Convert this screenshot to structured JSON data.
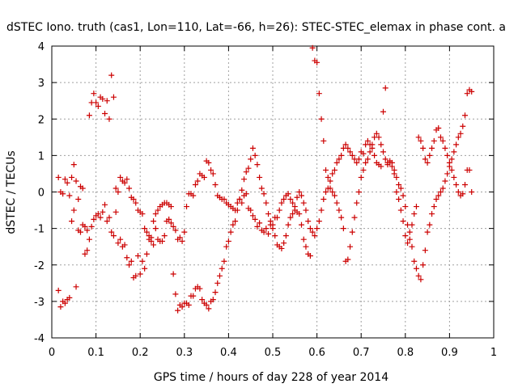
{
  "chart_data": {
    "type": "scatter",
    "title": "dSTEC Iono. truth (cas1, Lon=110, Lat=-66, h=26): STEC-STEC_elemax in phase cont. a",
    "xlabel": "GPS time / hours of day 228 of year 2014",
    "ylabel": "dSTEC  / TECUs",
    "xlim": [
      0,
      1
    ],
    "ylim": [
      -4,
      4
    ],
    "x_ticks": [
      "0",
      "0.1",
      "0.2",
      "0.3",
      "0.4",
      "0.5",
      "0.6",
      "0.7",
      "0.8",
      "0.9",
      "1"
    ],
    "y_ticks": [
      "-4",
      "-3",
      "-2",
      "-1",
      "0",
      "1",
      "2",
      "3",
      "4"
    ],
    "grid": true,
    "marker": "+",
    "color": "#cc0000",
    "series": [
      {
        "x": [
          0.015,
          0.02,
          0.025,
          0.03,
          0.035,
          0.04,
          0.045,
          0.05,
          0.055,
          0.06,
          0.065,
          0.07,
          0.075,
          0.08,
          0.085,
          0.09,
          0.095,
          0.1,
          0.105,
          0.11,
          0.115,
          0.12,
          0.125,
          0.13,
          0.135,
          0.14,
          0.145,
          0.15,
          0.155,
          0.16,
          0.165,
          0.17,
          0.175,
          0.18,
          0.185,
          0.19,
          0.195,
          0.2,
          0.205,
          0.21,
          0.215,
          0.22,
          0.225,
          0.23,
          0.235,
          0.24,
          0.245,
          0.25,
          0.255,
          0.26,
          0.265,
          0.27,
          0.275,
          0.28,
          0.285,
          0.29,
          0.295,
          0.3,
          0.305,
          0.31,
          0.315,
          0.32,
          0.325,
          0.33,
          0.335,
          0.34,
          0.345,
          0.35,
          0.355,
          0.36,
          0.365,
          0.37,
          0.375,
          0.38,
          0.385,
          0.39,
          0.395,
          0.4,
          0.405,
          0.41,
          0.415,
          0.42,
          0.425,
          0.43,
          0.435,
          0.44,
          0.445,
          0.45,
          0.455,
          0.46,
          0.465,
          0.47,
          0.475,
          0.48,
          0.485,
          0.49,
          0.495,
          0.5,
          0.505,
          0.51,
          0.515,
          0.52,
          0.525,
          0.53,
          0.535,
          0.54,
          0.545,
          0.55,
          0.555,
          0.56
        ],
        "y": [
          0.4,
          0.0,
          -0.05,
          0.35,
          0.25,
          -0.1,
          0.4,
          0.75,
          0.3,
          -0.2,
          -1.1,
          -0.9,
          -1.7,
          -1.6,
          -1.3,
          -0.95,
          -0.75,
          -0.65,
          -0.6,
          -0.7,
          -0.55,
          -0.35,
          -0.8,
          -0.7,
          -1.1,
          -1.2,
          -0.55,
          -1.4,
          -1.3,
          -1.5,
          -1.45,
          -1.8,
          -2.0,
          -1.9,
          -2.35,
          -2.3,
          -1.75,
          -2.25,
          -1.9,
          -2.1,
          -1.7,
          -1.3,
          -1.35,
          -1.45,
          -1.0,
          -1.3,
          -1.35,
          -1.35,
          -1.2,
          -0.8,
          -0.75,
          -0.85,
          -0.95,
          -1.05,
          -1.3,
          -1.25,
          -1.35,
          -1.1,
          -0.4,
          -0.05,
          -0.05,
          -0.1,
          0.2,
          0.3,
          0.5,
          0.45,
          0.4,
          0.85,
          0.8,
          0.6,
          0.5,
          0.2,
          -0.1,
          -0.15,
          -0.2,
          -0.2,
          -0.3,
          -0.35,
          -0.4,
          -0.45,
          -0.5,
          -0.3,
          -0.2,
          -0.3,
          -0.1,
          -0.05,
          -0.45,
          -0.5,
          -0.65,
          -0.75,
          -0.95,
          -0.85,
          -1.05,
          -1.1,
          -1.0,
          -1.15,
          -0.8,
          -0.9,
          -0.7,
          -0.7,
          -0.5,
          -0.3,
          -0.2,
          -0.1,
          -0.05,
          -0.2,
          -0.3,
          -0.5,
          -0.55,
          -0.6
        ]
      },
      {
        "x": [
          0.015,
          0.02,
          0.025,
          0.03,
          0.035,
          0.04,
          0.045,
          0.05,
          0.055,
          0.06,
          0.065,
          0.07,
          0.075,
          0.08,
          0.085,
          0.09,
          0.095,
          0.1,
          0.105,
          0.11,
          0.115,
          0.12,
          0.125,
          0.13,
          0.135,
          0.14,
          0.145,
          0.15,
          0.155,
          0.16,
          0.165,
          0.17,
          0.175,
          0.18,
          0.185,
          0.19,
          0.195,
          0.2,
          0.205,
          0.21,
          0.215,
          0.22,
          0.225,
          0.23,
          0.235,
          0.24,
          0.245,
          0.25,
          0.255,
          0.26,
          0.265,
          0.27,
          0.275,
          0.28,
          0.285,
          0.29,
          0.295,
          0.3,
          0.305,
          0.31,
          0.315,
          0.32,
          0.325,
          0.33,
          0.335,
          0.34,
          0.345,
          0.35,
          0.355,
          0.36,
          0.365,
          0.37,
          0.375,
          0.38,
          0.385,
          0.39,
          0.395,
          0.4,
          0.405,
          0.41,
          0.415,
          0.42,
          0.425,
          0.43,
          0.435,
          0.44,
          0.445,
          0.45,
          0.455,
          0.46,
          0.465,
          0.47,
          0.475,
          0.48,
          0.485,
          0.49,
          0.495,
          0.5,
          0.505,
          0.51,
          0.515,
          0.52,
          0.525,
          0.53,
          0.535,
          0.54,
          0.545,
          0.55,
          0.555,
          0.56
        ],
        "y": [
          -2.7,
          -3.15,
          -3.0,
          -3.05,
          -2.95,
          -2.9,
          -0.8,
          -0.5,
          -2.6,
          -1.05,
          0.15,
          0.1,
          -0.95,
          -1.05,
          2.1,
          2.45,
          2.7,
          2.45,
          2.35,
          2.6,
          2.55,
          2.15,
          2.5,
          2.0,
          3.2,
          2.6,
          0.1,
          0.0,
          0.4,
          0.3,
          0.25,
          0.35,
          0.1,
          -0.15,
          -0.2,
          -0.3,
          -0.5,
          -0.55,
          -0.6,
          -1.0,
          -1.1,
          -1.2,
          -1.25,
          -0.8,
          -0.6,
          -0.5,
          -0.4,
          -0.35,
          -0.3,
          -0.3,
          -0.35,
          -0.4,
          -2.25,
          -2.8,
          -3.25,
          -3.1,
          -3.15,
          -3.05,
          -3.05,
          -3.1,
          -2.85,
          -2.85,
          -2.65,
          -2.6,
          -2.65,
          -2.95,
          -3.05,
          -3.1,
          -3.2,
          -3.0,
          -2.95,
          -2.75,
          -2.5,
          -2.3,
          -2.1,
          -1.9,
          -1.5,
          -1.35,
          -1.1,
          -0.9,
          -0.8,
          -0.5,
          -0.2,
          0.05,
          0.35,
          0.55,
          0.65,
          0.9,
          1.2,
          1.0,
          0.75,
          0.4,
          0.1,
          -0.05,
          -0.3,
          -0.6,
          -0.9,
          -1.0,
          -1.2,
          -1.45,
          -1.5,
          -1.55,
          -1.4,
          -1.2,
          -0.9,
          -0.7,
          -0.6,
          -0.4,
          -0.15,
          0.0
        ]
      },
      {
        "x": [
          0.565,
          0.57,
          0.575,
          0.58,
          0.585,
          0.59,
          0.595,
          0.6,
          0.605,
          0.61,
          0.615,
          0.62,
          0.625,
          0.63,
          0.635,
          0.64,
          0.645,
          0.65,
          0.655,
          0.66,
          0.665,
          0.67,
          0.675,
          0.68,
          0.685,
          0.69,
          0.695,
          0.7,
          0.705,
          0.71,
          0.715,
          0.72,
          0.725,
          0.73,
          0.735,
          0.74,
          0.745,
          0.75,
          0.755,
          0.76,
          0.765,
          0.77,
          0.775,
          0.78,
          0.785,
          0.79,
          0.795,
          0.8,
          0.805,
          0.81,
          0.815,
          0.82,
          0.825,
          0.83,
          0.835,
          0.84,
          0.845,
          0.85,
          0.855,
          0.86,
          0.865,
          0.87,
          0.875,
          0.88,
          0.885,
          0.89,
          0.895,
          0.9,
          0.905,
          0.91,
          0.915,
          0.92,
          0.925,
          0.93,
          0.935,
          0.94,
          0.945,
          0.95
        ],
        "y": [
          -0.9,
          -1.3,
          -1.5,
          -1.7,
          -1.75,
          3.95,
          3.6,
          3.55,
          2.7,
          2.0,
          1.4,
          0.6,
          0.4,
          0.1,
          0.0,
          -0.1,
          -0.3,
          -0.5,
          -0.7,
          -1.0,
          -1.9,
          -1.85,
          -1.5,
          -1.1,
          -0.7,
          -0.3,
          0.0,
          0.4,
          0.6,
          0.8,
          0.9,
          1.1,
          1.3,
          1.5,
          1.6,
          1.5,
          1.3,
          1.1,
          0.9,
          0.8,
          0.85,
          0.8,
          0.6,
          0.4,
          0.2,
          0.1,
          -0.1,
          -0.4,
          -0.9,
          -1.1,
          -1.5,
          -1.9,
          -2.1,
          -2.3,
          -2.4,
          -2.0,
          -1.6,
          -1.1,
          -0.9,
          -0.6,
          -0.4,
          -0.2,
          -0.1,
          0.0,
          0.1,
          0.3,
          0.5,
          0.7,
          0.9,
          1.1,
          1.3,
          1.5,
          1.6,
          1.8,
          2.1,
          2.7,
          2.8,
          2.75
        ]
      },
      {
        "x": [
          0.565,
          0.57,
          0.575,
          0.58,
          0.585,
          0.59,
          0.595,
          0.6,
          0.605,
          0.61,
          0.615,
          0.62,
          0.625,
          0.63,
          0.635,
          0.64,
          0.645,
          0.65,
          0.655,
          0.66,
          0.665,
          0.67,
          0.675,
          0.68,
          0.685,
          0.69,
          0.695,
          0.7,
          0.705,
          0.71,
          0.715,
          0.72,
          0.725,
          0.73,
          0.735,
          0.74,
          0.745,
          0.75,
          0.755,
          0.76,
          0.765,
          0.77,
          0.775,
          0.78,
          0.785,
          0.79,
          0.795,
          0.8,
          0.805,
          0.81,
          0.815,
          0.82,
          0.825,
          0.83,
          0.835,
          0.84,
          0.845,
          0.85,
          0.855,
          0.86,
          0.865,
          0.87,
          0.875,
          0.88,
          0.885,
          0.89,
          0.895,
          0.9,
          0.905,
          0.91,
          0.915,
          0.92,
          0.925,
          0.93,
          0.935,
          0.94,
          0.945,
          0.95
        ],
        "y": [
          -0.1,
          -0.3,
          -0.5,
          -0.8,
          -1.0,
          -1.1,
          -1.2,
          -1.0,
          -0.8,
          -0.5,
          -0.2,
          0.0,
          0.1,
          0.3,
          0.5,
          0.6,
          0.8,
          0.9,
          1.0,
          1.2,
          1.3,
          1.2,
          1.1,
          1.0,
          0.9,
          0.8,
          0.9,
          1.1,
          1.05,
          1.3,
          1.4,
          1.3,
          1.2,
          1.0,
          0.8,
          0.75,
          0.7,
          2.2,
          2.85,
          0.75,
          0.8,
          0.7,
          0.5,
          0.0,
          -0.2,
          -0.5,
          -0.8,
          -1.2,
          -1.4,
          -1.3,
          -0.9,
          -0.6,
          -0.4,
          1.5,
          1.4,
          1.2,
          0.9,
          0.8,
          1.0,
          1.2,
          1.4,
          1.7,
          1.75,
          1.5,
          1.4,
          1.2,
          1.0,
          0.8,
          0.6,
          0.4,
          0.2,
          0.0,
          -0.1,
          -0.05,
          0.2,
          0.6,
          0.6,
          0.0
        ]
      }
    ]
  }
}
